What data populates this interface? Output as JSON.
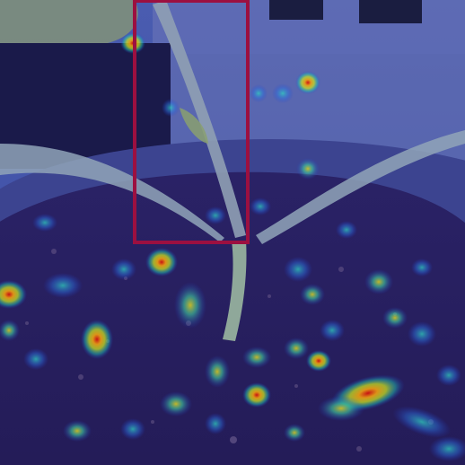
{
  "image": {
    "subject": "plant-stem-heatmap-overlay",
    "colors": {
      "overlay_blue": "#1b2aa8",
      "soil_dark": "#1c1830",
      "stem_green": "#8fa89a",
      "box_crimson": "#9c1040",
      "pot_rim": "#4a5270"
    },
    "highlight_box": {
      "label": "",
      "color": "#9c1040"
    }
  }
}
